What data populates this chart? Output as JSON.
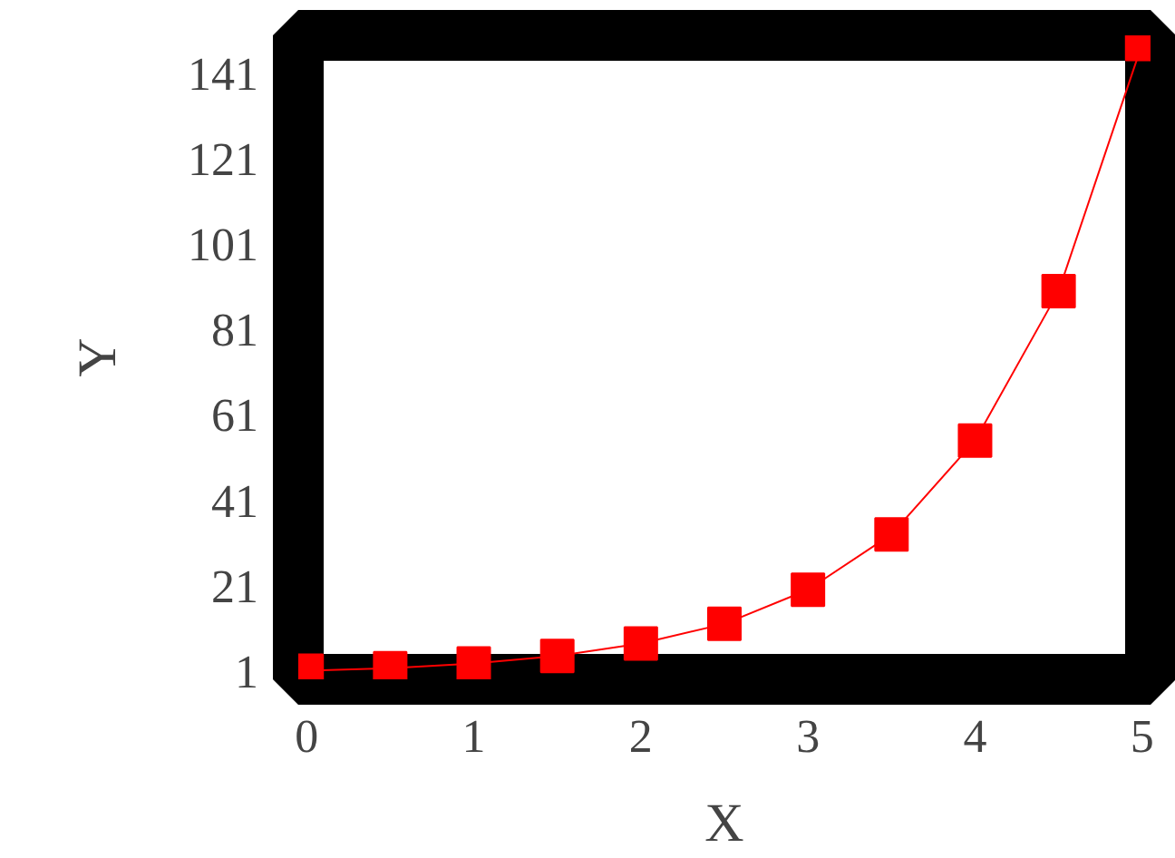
{
  "chart_data": {
    "type": "line",
    "xlabel": "X",
    "ylabel": "Y",
    "x": [
      0,
      0.5,
      1,
      1.5,
      2,
      2.5,
      3,
      3.5,
      4,
      4.5,
      5
    ],
    "series": [
      {
        "color": "#ff0000",
        "values": [
          1,
          1.6,
          2.7,
          4.5,
          7.4,
          12,
          20,
          33,
          55,
          90,
          148
        ]
      }
    ],
    "xlim": [
      -0.05,
      5.05
    ],
    "ylim": [
      -1,
      150
    ],
    "xticks": [
      0,
      1,
      2,
      3,
      4,
      5
    ],
    "yticks": [
      1,
      21,
      41,
      61,
      81,
      101,
      121,
      141
    ],
    "grid": false,
    "marker": "square",
    "line_style": "solid"
  }
}
